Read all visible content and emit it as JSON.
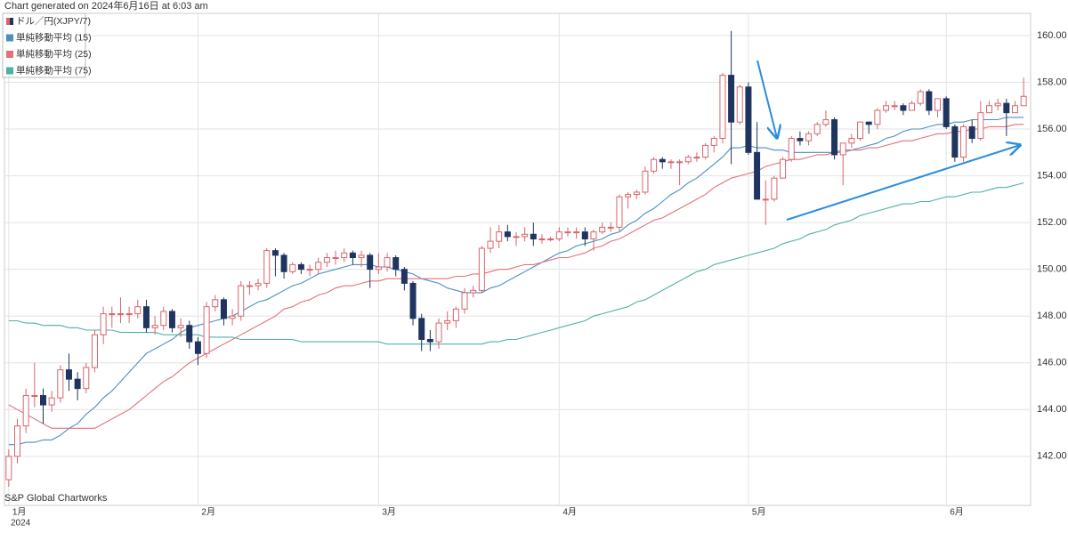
{
  "chart_data": {
    "type": "candlestick",
    "title": "Chart generated on 2024年6月16日 at 6:03 am",
    "source": "S&P Global Chartworks",
    "year_label": "2024",
    "categories": [
      "1月",
      null,
      null,
      null,
      null,
      null,
      null,
      null,
      null,
      null,
      null,
      null,
      null,
      null,
      null,
      null,
      null,
      null,
      null,
      null,
      null,
      null,
      "2月",
      null,
      null,
      null,
      null,
      null,
      null,
      null,
      null,
      null,
      null,
      null,
      null,
      null,
      null,
      null,
      null,
      null,
      null,
      null,
      null,
      "3月",
      null,
      null,
      null,
      null,
      null,
      null,
      null,
      null,
      null,
      null,
      null,
      null,
      null,
      null,
      null,
      null,
      null,
      null,
      null,
      null,
      "4月",
      null,
      null,
      null,
      null,
      null,
      null,
      null,
      null,
      null,
      null,
      null,
      null,
      null,
      null,
      null,
      null,
      null,
      null,
      null,
      null,
      null,
      "5月",
      null,
      null,
      null,
      null,
      null,
      null,
      null,
      null,
      null,
      null,
      null,
      null,
      null,
      null,
      null,
      null,
      null,
      null,
      null,
      null,
      null,
      null,
      "6月",
      null,
      null,
      null,
      null,
      null,
      null,
      null,
      null,
      null
    ],
    "ylim": [
      139.9,
      160.95
    ],
    "yticks": [
      {
        "value": 142,
        "label": "142.00"
      },
      {
        "value": 144,
        "label": "144.00"
      },
      {
        "value": 146,
        "label": "146.00"
      },
      {
        "value": 148,
        "label": "148.00"
      },
      {
        "value": 150,
        "label": "150.00"
      },
      {
        "value": 152,
        "label": "152.00"
      },
      {
        "value": 154,
        "label": "154.00"
      },
      {
        "value": 156,
        "label": "156.00"
      },
      {
        "value": 158,
        "label": "158.00"
      },
      {
        "value": 160,
        "label": "160.00"
      }
    ],
    "grid": true,
    "legend": "top-left",
    "series": [
      {
        "name": "ドル／円(XJPY/7)",
        "kind": "candlestick",
        "up_color": "#d9656b",
        "down_color": "#1f3560",
        "open": [
          141.0,
          142.0,
          143.3,
          144.6,
          144.6,
          144.2,
          144.5,
          145.7,
          145.3,
          144.9,
          145.8,
          147.2,
          148.1,
          148.1,
          148.1,
          148.1,
          148.4,
          147.5,
          147.6,
          148.2,
          147.5,
          147.6,
          146.9,
          146.4,
          148.4,
          148.7,
          147.9,
          148.0,
          149.3,
          149.3,
          149.4,
          150.8,
          150.6,
          149.9,
          150.2,
          150.0,
          150.0,
          150.3,
          150.5,
          150.5,
          150.7,
          150.5,
          150.6,
          150.0,
          150.1,
          150.5,
          150.0,
          149.4,
          147.9,
          147.0,
          146.9,
          147.7,
          147.8,
          148.3,
          149.0,
          149.1,
          150.9,
          151.2,
          151.6,
          151.4,
          151.4,
          151.5,
          151.3,
          151.3,
          151.3,
          151.6,
          151.6,
          151.6,
          151.3,
          151.6,
          151.8,
          151.8,
          153.1,
          153.2,
          153.3,
          154.2,
          154.7,
          154.6,
          154.6,
          154.6,
          154.8,
          154.8,
          155.3,
          155.6,
          158.3,
          156.3,
          157.8,
          155.0,
          153.0,
          153.0,
          153.9,
          154.7,
          155.6,
          155.5,
          155.8,
          156.2,
          156.4,
          154.9,
          155.4,
          155.6,
          156.3,
          156.2,
          156.8,
          157.0,
          157.0,
          156.8,
          157.1,
          157.6,
          156.8,
          157.3,
          156.1,
          154.8,
          156.1,
          155.6,
          156.7,
          157.0,
          157.1,
          156.7,
          157.0
        ],
        "high": [
          142.3,
          143.6,
          144.9,
          146.0,
          144.9,
          144.8,
          145.9,
          146.4,
          145.6,
          146.0,
          147.4,
          148.4,
          148.4,
          148.8,
          148.4,
          148.7,
          148.7,
          148.0,
          148.4,
          148.3,
          147.9,
          147.8,
          147.1,
          148.6,
          148.9,
          148.8,
          148.3,
          149.5,
          149.5,
          149.6,
          150.9,
          150.9,
          150.7,
          150.3,
          150.3,
          150.2,
          150.5,
          150.7,
          150.8,
          150.9,
          150.8,
          150.8,
          150.7,
          150.7,
          150.7,
          150.6,
          150.1,
          149.5,
          148.1,
          147.4,
          147.9,
          148.2,
          148.4,
          149.2,
          149.3,
          151.0,
          151.8,
          151.9,
          151.9,
          151.6,
          151.8,
          152.0,
          151.5,
          151.4,
          151.8,
          151.8,
          151.8,
          151.8,
          151.7,
          152.0,
          152.0,
          153.2,
          153.3,
          153.4,
          154.4,
          154.8,
          154.8,
          154.7,
          154.7,
          154.9,
          155.0,
          155.4,
          155.7,
          158.4,
          160.2,
          157.9,
          158.0,
          156.3,
          153.8,
          154.0,
          154.8,
          155.7,
          155.9,
          155.9,
          156.3,
          156.8,
          156.5,
          155.4,
          155.8,
          156.3,
          156.3,
          156.9,
          157.2,
          157.2,
          157.1,
          157.2,
          157.7,
          157.7,
          157.3,
          157.4,
          156.2,
          156.2,
          156.4,
          157.2,
          157.2,
          157.3,
          157.3,
          157.2,
          158.2
        ],
        "low": [
          140.7,
          141.7,
          143.0,
          144.1,
          143.4,
          143.9,
          144.3,
          144.8,
          144.4,
          144.7,
          145.6,
          146.8,
          147.5,
          147.7,
          147.7,
          147.9,
          147.3,
          147.2,
          147.4,
          147.3,
          147.1,
          146.6,
          145.9,
          146.2,
          148.2,
          147.6,
          147.6,
          147.8,
          148.9,
          149.1,
          149.2,
          149.7,
          149.6,
          149.8,
          149.8,
          149.7,
          149.8,
          150.1,
          150.2,
          150.3,
          150.2,
          150.1,
          149.2,
          149.8,
          149.9,
          149.7,
          149.1,
          147.6,
          146.5,
          146.5,
          146.6,
          147.4,
          147.5,
          148.1,
          148.8,
          149.0,
          150.7,
          150.9,
          151.2,
          151.0,
          151.2,
          151.0,
          151.1,
          151.2,
          151.2,
          151.4,
          151.3,
          151.0,
          150.8,
          151.5,
          151.6,
          151.6,
          152.6,
          153.0,
          153.2,
          154.1,
          154.3,
          154.3,
          153.6,
          154.5,
          154.6,
          154.7,
          155.0,
          155.4,
          154.5,
          156.2,
          154.9,
          153.0,
          151.9,
          152.9,
          153.9,
          154.6,
          155.3,
          155.3,
          155.7,
          156.1,
          154.7,
          153.6,
          155.2,
          155.5,
          155.8,
          156.0,
          156.7,
          156.8,
          156.6,
          156.8,
          157.0,
          156.6,
          156.5,
          156.0,
          154.6,
          154.6,
          155.4,
          155.5,
          156.7,
          156.8,
          155.7,
          156.7,
          157.0
        ],
        "close": [
          142.0,
          143.3,
          144.6,
          144.6,
          144.2,
          144.5,
          145.7,
          145.3,
          144.9,
          145.8,
          147.2,
          148.1,
          148.1,
          148.1,
          148.1,
          148.4,
          147.5,
          147.6,
          148.2,
          147.5,
          147.6,
          146.9,
          146.4,
          148.4,
          148.7,
          147.9,
          148.0,
          149.3,
          149.3,
          149.4,
          150.8,
          150.6,
          149.9,
          150.2,
          150.0,
          150.0,
          150.3,
          150.5,
          150.5,
          150.7,
          150.5,
          150.6,
          150.0,
          150.1,
          150.5,
          150.0,
          149.4,
          147.9,
          147.0,
          146.9,
          147.7,
          147.8,
          148.3,
          149.0,
          149.1,
          150.9,
          151.2,
          151.6,
          151.4,
          151.4,
          151.5,
          151.3,
          151.3,
          151.3,
          151.6,
          151.6,
          151.6,
          151.3,
          151.6,
          151.8,
          151.8,
          153.1,
          153.2,
          153.3,
          154.2,
          154.7,
          154.6,
          154.6,
          154.6,
          154.8,
          154.8,
          155.3,
          155.6,
          158.3,
          156.3,
          157.8,
          155.0,
          153.0,
          153.0,
          153.9,
          154.7,
          155.6,
          155.5,
          155.8,
          156.2,
          156.4,
          154.9,
          155.4,
          155.6,
          156.3,
          156.2,
          156.8,
          157.0,
          157.0,
          156.8,
          157.1,
          157.6,
          156.8,
          157.3,
          156.1,
          154.8,
          156.1,
          155.6,
          156.7,
          157.0,
          157.1,
          156.7,
          157.0,
          157.4
        ]
      },
      {
        "name": "単純移動平均 (15)",
        "kind": "line",
        "color": "#4a8fc4",
        "values": [
          142.5,
          142.5,
          142.6,
          142.6,
          142.7,
          142.7,
          142.9,
          143.2,
          143.4,
          143.8,
          144.1,
          144.5,
          144.8,
          145.2,
          145.6,
          146.0,
          146.4,
          146.6,
          146.8,
          147.0,
          147.3,
          147.5,
          147.6,
          147.7,
          147.8,
          147.9,
          148.0,
          148.2,
          148.4,
          148.6,
          148.7,
          148.9,
          149.1,
          149.3,
          149.4,
          149.6,
          149.8,
          149.9,
          150.0,
          150.1,
          150.2,
          150.2,
          150.2,
          150.1,
          150.1,
          150.0,
          149.9,
          149.8,
          149.6,
          149.5,
          149.4,
          149.2,
          149.1,
          149.0,
          149.0,
          149.0,
          149.2,
          149.3,
          149.5,
          149.7,
          149.9,
          150.1,
          150.3,
          150.5,
          150.7,
          150.8,
          151.0,
          151.1,
          151.2,
          151.3,
          151.5,
          151.6,
          151.9,
          152.1,
          152.4,
          152.6,
          152.9,
          153.2,
          153.4,
          153.7,
          153.9,
          154.2,
          154.5,
          154.8,
          155.2,
          155.2,
          155.3,
          155.2,
          155.2,
          155.1,
          155.1,
          155.0,
          155.0,
          155.0,
          155.0,
          155.0,
          155.0,
          155.1,
          155.1,
          155.2,
          155.3,
          155.4,
          155.6,
          155.7,
          155.9,
          156.0,
          156.0,
          156.1,
          156.2,
          156.2,
          156.3,
          156.3,
          156.4,
          156.4,
          156.4,
          156.4,
          156.5,
          156.5,
          156.5
        ]
      },
      {
        "name": "単純移動平均 (25)",
        "kind": "line",
        "color": "#e0727a",
        "values": [
          144.2,
          144.0,
          143.8,
          143.6,
          143.4,
          143.2,
          143.2,
          143.2,
          143.2,
          143.2,
          143.2,
          143.4,
          143.6,
          143.8,
          144.0,
          144.3,
          144.6,
          144.9,
          145.2,
          145.4,
          145.7,
          146.0,
          146.2,
          146.4,
          146.6,
          146.8,
          147.0,
          147.2,
          147.4,
          147.6,
          147.8,
          148.0,
          148.3,
          148.4,
          148.6,
          148.7,
          148.9,
          149.0,
          149.2,
          149.3,
          149.3,
          149.4,
          149.5,
          149.5,
          149.6,
          149.6,
          149.6,
          149.6,
          149.6,
          149.6,
          149.6,
          149.6,
          149.7,
          149.7,
          149.8,
          149.8,
          149.9,
          150.0,
          150.0,
          150.1,
          150.2,
          150.2,
          150.3,
          150.4,
          150.5,
          150.5,
          150.6,
          150.7,
          150.9,
          151.0,
          151.2,
          151.3,
          151.5,
          151.7,
          151.9,
          152.1,
          152.2,
          152.4,
          152.6,
          152.8,
          153.0,
          153.2,
          153.5,
          153.7,
          153.9,
          154.0,
          154.1,
          154.2,
          154.4,
          154.5,
          154.6,
          154.7,
          154.7,
          154.8,
          154.9,
          154.9,
          155.0,
          155.0,
          155.1,
          155.1,
          155.2,
          155.2,
          155.3,
          155.4,
          155.5,
          155.5,
          155.6,
          155.7,
          155.8,
          155.8,
          155.9,
          155.9,
          156.0,
          156.0,
          156.1,
          156.1,
          156.1,
          156.2,
          156.2
        ]
      },
      {
        "name": "単純移動平均 (75)",
        "kind": "line",
        "color": "#4fb0a6",
        "values": [
          147.8,
          147.8,
          147.7,
          147.7,
          147.6,
          147.6,
          147.6,
          147.5,
          147.5,
          147.4,
          147.4,
          147.4,
          147.4,
          147.3,
          147.3,
          147.3,
          147.3,
          147.3,
          147.2,
          147.2,
          147.2,
          147.2,
          147.2,
          147.1,
          147.1,
          147.1,
          147.1,
          147.0,
          147.0,
          147.0,
          147.0,
          147.0,
          147.0,
          147.0,
          146.9,
          146.9,
          146.9,
          146.9,
          146.9,
          146.9,
          146.9,
          146.9,
          146.9,
          146.9,
          146.8,
          146.8,
          146.8,
          146.8,
          146.8,
          146.8,
          146.8,
          146.8,
          146.8,
          146.8,
          146.8,
          146.8,
          146.9,
          146.9,
          147.0,
          147.0,
          147.1,
          147.2,
          147.3,
          147.4,
          147.5,
          147.6,
          147.7,
          147.8,
          148.0,
          148.1,
          148.2,
          148.3,
          148.4,
          148.6,
          148.7,
          148.9,
          149.1,
          149.3,
          149.5,
          149.7,
          149.9,
          150.0,
          150.2,
          150.3,
          150.4,
          150.5,
          150.6,
          150.7,
          150.8,
          150.9,
          151.1,
          151.2,
          151.3,
          151.5,
          151.6,
          151.7,
          151.9,
          152.0,
          152.1,
          152.3,
          152.4,
          152.5,
          152.6,
          152.7,
          152.8,
          152.8,
          152.9,
          152.9,
          153.0,
          153.1,
          153.1,
          153.2,
          153.3,
          153.3,
          153.4,
          153.5,
          153.5,
          153.6,
          153.7
        ]
      }
    ]
  }
}
